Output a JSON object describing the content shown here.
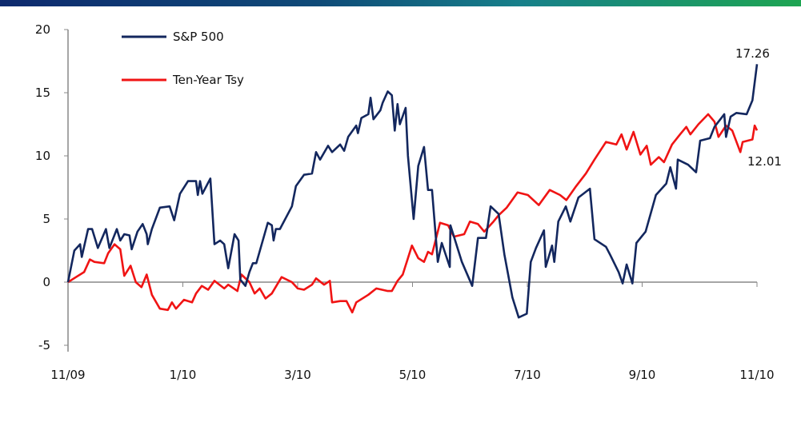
{
  "chart_data": {
    "type": "line",
    "title": "",
    "xlabel": "",
    "ylabel": "",
    "x_unit": "months since 11/09",
    "xlim": [
      0,
      12
    ],
    "ylim": [
      -5,
      20
    ],
    "y_ticks": [
      "-5",
      "0",
      "5",
      "10",
      "15",
      "20"
    ],
    "x_ticks": [
      {
        "label": "11/09",
        "x": 0
      },
      {
        "label": "1/10",
        "x": 2
      },
      {
        "label": "3/10",
        "x": 4
      },
      {
        "label": "5/10",
        "x": 6
      },
      {
        "label": "7/10",
        "x": 8
      },
      {
        "label": "9/10",
        "x": 10
      },
      {
        "label": "11/10",
        "x": 12
      }
    ],
    "legend_position": "top-left",
    "series": [
      {
        "name": "S&P 500",
        "color": "#13275e",
        "end_label": "17.26",
        "x": [
          0,
          0.11,
          0.21,
          0.24,
          0.35,
          0.42,
          0.52,
          0.66,
          0.72,
          0.85,
          0.91,
          0.98,
          1.07,
          1.11,
          1.21,
          1.3,
          1.37,
          1.39,
          1.46,
          1.6,
          1.77,
          1.85,
          1.95,
          2.09,
          2.23,
          2.26,
          2.3,
          2.34,
          2.48,
          2.55,
          2.65,
          2.72,
          2.79,
          2.9,
          2.97,
          3.0,
          3.09,
          3.16,
          3.22,
          3.28,
          3.48,
          3.55,
          3.58,
          3.62,
          3.69,
          3.9,
          3.97,
          4.11,
          4.25,
          4.32,
          4.39,
          4.53,
          4.6,
          4.74,
          4.81,
          4.88,
          5.02,
          5.05,
          5.11,
          5.23,
          5.27,
          5.32,
          5.44,
          5.48,
          5.57,
          5.64,
          5.69,
          5.74,
          5.78,
          5.88,
          5.92,
          6.02,
          6.1,
          6.2,
          6.27,
          6.34,
          6.44,
          6.51,
          6.65,
          6.66,
          6.86,
          7.04,
          7.14,
          7.28,
          7.36,
          7.5,
          7.6,
          7.74,
          7.85,
          7.99,
          8.06,
          8.15,
          8.29,
          8.32,
          8.43,
          8.47,
          8.54,
          8.67,
          8.75,
          8.89,
          9.09,
          9.17,
          9.37,
          9.45,
          9.59,
          9.66,
          9.73,
          9.83,
          9.9,
          10.06,
          10.24,
          10.42,
          10.49,
          10.59,
          10.62,
          10.8,
          10.94,
          11.01,
          11.18,
          11.26,
          11.43,
          11.46,
          11.54,
          11.64,
          11.82,
          11.92,
          12
        ],
        "y": [
          0,
          2.5,
          3.0,
          2.0,
          4.2,
          4.2,
          2.7,
          4.2,
          2.7,
          4.2,
          3.3,
          3.8,
          3.7,
          2.6,
          4.0,
          4.6,
          3.8,
          3.0,
          4.2,
          5.9,
          6.0,
          4.9,
          7.0,
          8.0,
          8.0,
          6.9,
          8.0,
          7.0,
          8.2,
          3.0,
          3.3,
          3.0,
          1.1,
          3.8,
          3.3,
          0.2,
          -0.3,
          0.8,
          1.5,
          1.5,
          4.7,
          4.5,
          3.3,
          4.2,
          4.2,
          6.0,
          7.6,
          8.5,
          8.6,
          10.3,
          9.7,
          10.8,
          10.3,
          10.9,
          10.4,
          11.5,
          12.4,
          11.8,
          13.0,
          13.3,
          14.6,
          12.9,
          13.6,
          14.2,
          15.1,
          14.8,
          12.0,
          14.1,
          12.5,
          13.8,
          10.0,
          5.0,
          9.2,
          10.7,
          7.3,
          7.3,
          1.6,
          3.1,
          1.2,
          4.5,
          1.6,
          -0.3,
          3.5,
          3.5,
          6.0,
          5.4,
          2.2,
          -1.2,
          -2.8,
          -2.5,
          1.6,
          2.7,
          4.1,
          1.2,
          2.9,
          1.6,
          4.8,
          6.0,
          4.8,
          6.7,
          7.4,
          3.4,
          2.8,
          2.1,
          0.8,
          -0.1,
          1.4,
          -0.1,
          3.1,
          4.0,
          6.9,
          7.8,
          9.1,
          7.4,
          9.7,
          9.3,
          8.7,
          11.2,
          11.4,
          12.3,
          13.3,
          11.5,
          13.1,
          13.4,
          13.3,
          14.4,
          17.26
        ]
      },
      {
        "name": "Ten-Year Tsy",
        "color": "#f01414",
        "end_label": "12.01",
        "x": [
          0,
          0.14,
          0.28,
          0.38,
          0.46,
          0.63,
          0.7,
          0.81,
          0.91,
          0.98,
          1.09,
          1.18,
          1.28,
          1.37,
          1.46,
          1.6,
          1.74,
          1.81,
          1.88,
          2.02,
          2.16,
          2.23,
          2.33,
          2.44,
          2.55,
          2.72,
          2.79,
          2.95,
          3.02,
          3.16,
          3.25,
          3.34,
          3.44,
          3.55,
          3.72,
          3.9,
          4.0,
          4.11,
          4.25,
          4.32,
          4.46,
          4.56,
          4.6,
          4.74,
          4.85,
          4.95,
          5.02,
          5.23,
          5.37,
          5.57,
          5.64,
          5.74,
          5.83,
          5.99,
          6.1,
          6.2,
          6.27,
          6.34,
          6.48,
          6.62,
          6.72,
          6.9,
          7.0,
          7.14,
          7.25,
          7.41,
          7.5,
          7.64,
          7.83,
          8.01,
          8.2,
          8.39,
          8.57,
          8.68,
          8.85,
          9.02,
          9.17,
          9.37,
          9.55,
          9.64,
          9.73,
          9.85,
          9.97,
          10.08,
          10.15,
          10.29,
          10.38,
          10.52,
          10.66,
          10.77,
          10.84,
          10.98,
          11.15,
          11.26,
          11.33,
          11.46,
          11.57,
          11.71,
          11.75,
          11.92,
          11.96,
          12
        ],
        "y": [
          0,
          0.4,
          0.8,
          1.8,
          1.6,
          1.5,
          2.3,
          3.0,
          2.6,
          0.5,
          1.3,
          0,
          -0.4,
          0.6,
          -1.0,
          -2.1,
          -2.2,
          -1.6,
          -2.1,
          -1.4,
          -1.6,
          -0.9,
          -0.3,
          -0.6,
          0.1,
          -0.5,
          -0.2,
          -0.7,
          0.6,
          0.0,
          -0.9,
          -0.5,
          -1.3,
          -0.9,
          0.4,
          0.0,
          -0.5,
          -0.6,
          -0.2,
          0.3,
          -0.2,
          0.1,
          -1.6,
          -1.5,
          -1.5,
          -2.4,
          -1.6,
          -1.0,
          -0.5,
          -0.7,
          -0.7,
          0.1,
          0.6,
          2.9,
          1.9,
          1.6,
          2.4,
          2.2,
          4.7,
          4.5,
          3.6,
          3.8,
          4.8,
          4.6,
          4.0,
          4.8,
          5.3,
          5.9,
          7.1,
          6.9,
          6.1,
          7.3,
          6.9,
          6.5,
          7.6,
          8.6,
          9.7,
          11.1,
          10.9,
          11.7,
          10.5,
          11.9,
          10.1,
          10.8,
          9.3,
          9.9,
          9.5,
          10.9,
          11.7,
          12.3,
          11.7,
          12.5,
          13.3,
          12.7,
          11.5,
          12.4,
          12.0,
          10.3,
          11.1,
          11.3,
          12.4,
          12.01
        ]
      }
    ]
  }
}
